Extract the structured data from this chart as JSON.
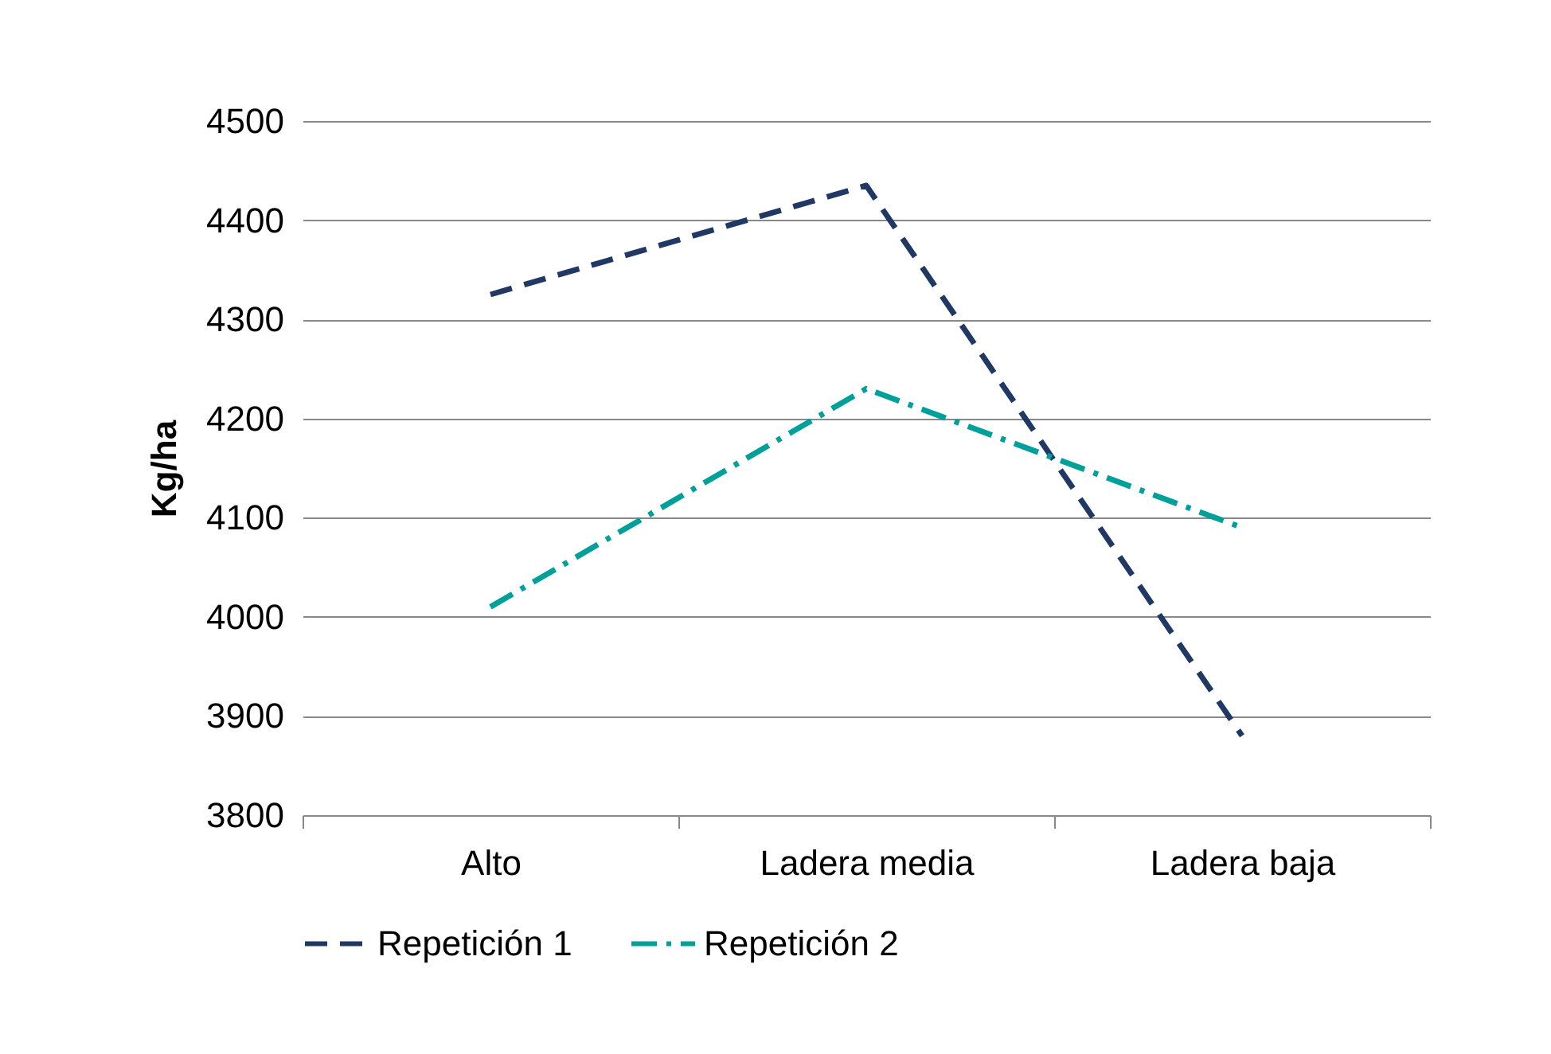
{
  "chart_data": {
    "type": "line",
    "ylabel": "Kg/ha",
    "categories": [
      "Alto",
      "Ladera media",
      "Ladera baja"
    ],
    "series": [
      {
        "name": "Repetición 1",
        "color": "#1f3864",
        "line_style": "dashed",
        "values": [
          4325,
          4435,
          3880
        ]
      },
      {
        "name": "Repetición 2",
        "color": "#00a09a",
        "line_style": "dashdot",
        "values": [
          4010,
          4230,
          4090
        ]
      }
    ],
    "ylim": [
      3800,
      4500
    ],
    "yticks": [
      3800,
      3900,
      4000,
      4100,
      4200,
      4300,
      4400,
      4500
    ],
    "grid": "y",
    "legend": "bottom",
    "marker": "none"
  }
}
